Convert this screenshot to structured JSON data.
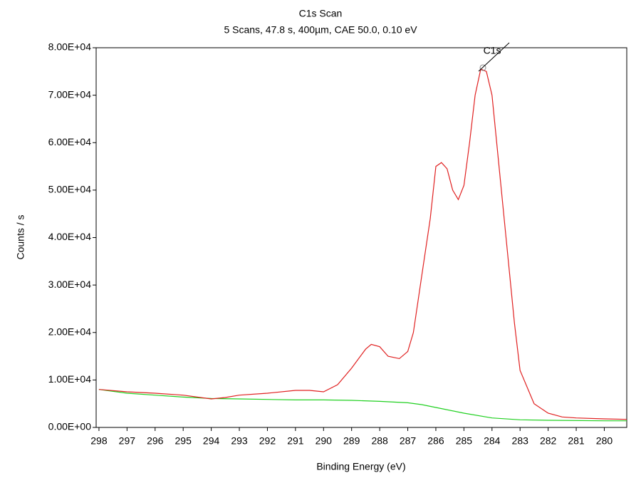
{
  "chart_data": {
    "type": "line",
    "title": "C1s Scan",
    "subtitle": "5 Scans,  47.8 s,  400µm,  CAE 50.0,  0.10 eV",
    "x_label": "Binding Energy (eV)",
    "y_label": "Counts / s",
    "xlim": [
      298.1,
      279.2
    ],
    "xticks": [
      298,
      297,
      296,
      295,
      294,
      293,
      292,
      291,
      290,
      289,
      288,
      287,
      286,
      285,
      284,
      283,
      282,
      281,
      280
    ],
    "ylim": [
      0,
      80000
    ],
    "yticks": [
      {
        "value": 0,
        "label": "0.00E+00"
      },
      {
        "value": 10000,
        "label": "1.00E+04"
      },
      {
        "value": 20000,
        "label": "2.00E+04"
      },
      {
        "value": 30000,
        "label": "3.00E+04"
      },
      {
        "value": 40000,
        "label": "4.00E+04"
      },
      {
        "value": 50000,
        "label": "5.00E+04"
      },
      {
        "value": 60000,
        "label": "6.00E+04"
      },
      {
        "value": 70000,
        "label": "7.00E+04"
      },
      {
        "value": 80000,
        "label": "8.00E+04"
      }
    ],
    "annotations": [
      {
        "text": "C1s",
        "x": 284.4,
        "y": 75500
      }
    ],
    "series": [
      {
        "color": "#e02020",
        "x": [
          298,
          297,
          296,
          295,
          294,
          293.5,
          293,
          292,
          291,
          290.5,
          290,
          289.5,
          289,
          288.5,
          288.3,
          288,
          287.7,
          287.3,
          287,
          286.8,
          286.5,
          286.2,
          286,
          285.8,
          285.6,
          285.4,
          285.2,
          285,
          284.8,
          284.6,
          284.4,
          284.2,
          284,
          283.8,
          283.5,
          283.2,
          283,
          282.5,
          282,
          281.5,
          281,
          280,
          279.2
        ],
        "values": [
          8000,
          7500,
          7200,
          6800,
          6000,
          6300,
          6800,
          7200,
          7800,
          7800,
          7500,
          9000,
          12500,
          16500,
          17500,
          17000,
          15000,
          14500,
          16000,
          20000,
          32000,
          44000,
          55000,
          55800,
          54500,
          50000,
          48000,
          51000,
          60000,
          70000,
          75500,
          75000,
          70000,
          58000,
          40000,
          22000,
          12000,
          5000,
          3000,
          2200,
          2000,
          1800,
          1700
        ]
      },
      {
        "color": "#20d020",
        "x": [
          298,
          297,
          296,
          295,
          294,
          293,
          292,
          291,
          290,
          289,
          288,
          287,
          286.5,
          286,
          285,
          284,
          283,
          282,
          280,
          279.2
        ],
        "values": [
          8000,
          7200,
          6800,
          6400,
          6100,
          6000,
          5900,
          5800,
          5800,
          5700,
          5500,
          5200,
          4800,
          4200,
          3000,
          2000,
          1600,
          1500,
          1400,
          1400
        ]
      }
    ]
  }
}
